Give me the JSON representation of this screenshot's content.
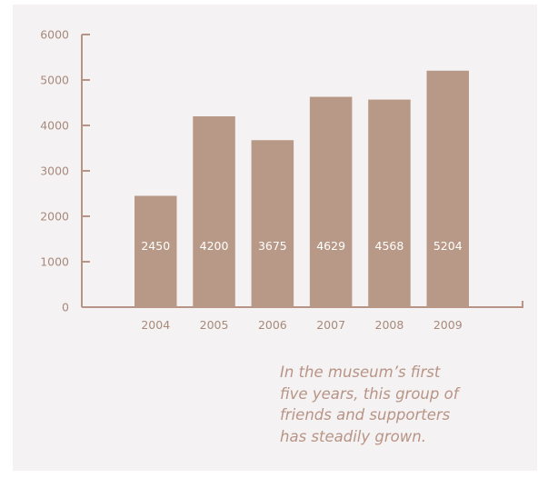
{
  "chart_data": {
    "type": "bar",
    "categories": [
      "2004",
      "2005",
      "2006",
      "2007",
      "2008",
      "2009"
    ],
    "values": [
      2450,
      4200,
      3675,
      4629,
      4568,
      5204
    ],
    "data_labels": [
      "2450",
      "4200",
      "3675",
      "4629",
      "4568",
      "5204"
    ],
    "y_ticks": [
      "0",
      "1000",
      "2000",
      "3000",
      "4000",
      "5000",
      "6000"
    ],
    "ylim": [
      0,
      6000
    ],
    "title": "",
    "xlabel": "",
    "ylabel": "",
    "grid": false,
    "colors": {
      "bar": "#b89886",
      "axis": "#b89486",
      "text": "#a88a7c",
      "panel": "#f4f2f2"
    }
  },
  "caption": {
    "lines": [
      "In the museum’s first",
      "five years, this group of",
      "friends and supporters",
      "has steadily grown."
    ]
  }
}
